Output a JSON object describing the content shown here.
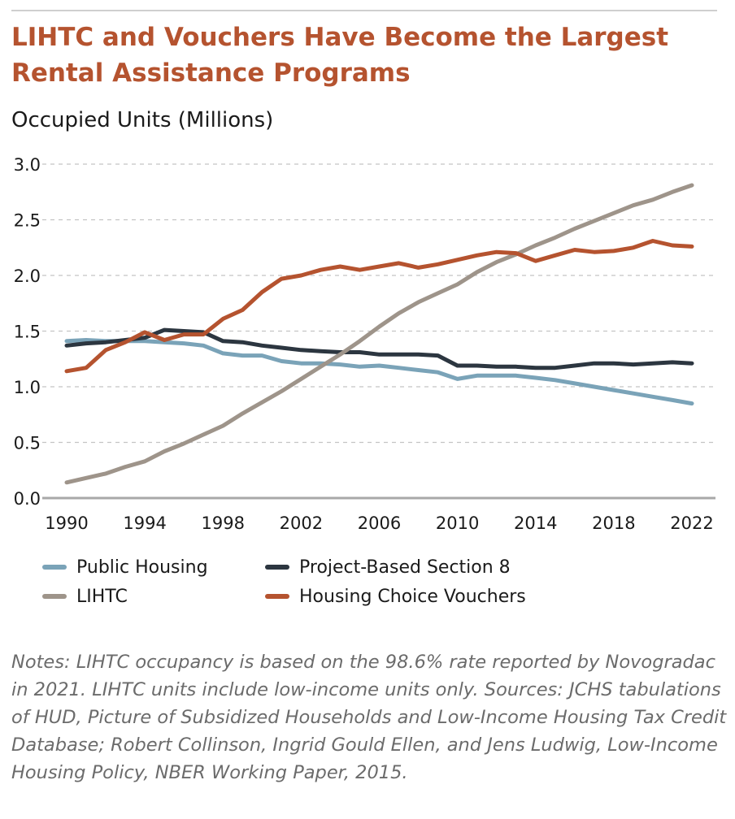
{
  "chart_data": {
    "type": "line",
    "title": "LIHTC and Vouchers Have Become the Largest Rental Assistance Programs",
    "ylabel": "Occupied Units (Millions)",
    "xlabel": "",
    "ylim": [
      0,
      3.0
    ],
    "xlim": [
      1990,
      2022
    ],
    "yticks": [
      "0.0",
      "0.5",
      "1.0",
      "1.5",
      "2.0",
      "2.5",
      "3.0"
    ],
    "xticks": [
      "1990",
      "1994",
      "1998",
      "2002",
      "2006",
      "2010",
      "2014",
      "2018",
      "2022"
    ],
    "grid": "horizontal dashed",
    "legend_position": "bottom",
    "x": [
      1990,
      1991,
      1992,
      1993,
      1994,
      1995,
      1996,
      1997,
      1998,
      1999,
      2000,
      2001,
      2002,
      2003,
      2004,
      2005,
      2006,
      2007,
      2008,
      2009,
      2010,
      2011,
      2012,
      2013,
      2014,
      2015,
      2016,
      2017,
      2018,
      2019,
      2020,
      2021,
      2022
    ],
    "series": [
      {
        "name": "Public Housing",
        "color": "#7aa3b8",
        "values": [
          1.41,
          1.42,
          1.41,
          1.41,
          1.41,
          1.4,
          1.39,
          1.37,
          1.3,
          1.28,
          1.28,
          1.23,
          1.21,
          1.21,
          1.2,
          1.18,
          1.19,
          1.17,
          1.15,
          1.13,
          1.07,
          1.1,
          1.1,
          1.1,
          1.08,
          1.06,
          1.03,
          1.0,
          0.97,
          0.94,
          0.91,
          0.88,
          0.85
        ]
      },
      {
        "name": "Project-Based Section 8",
        "color": "#2c3640",
        "values": [
          1.37,
          1.39,
          1.4,
          1.42,
          1.44,
          1.51,
          1.5,
          1.49,
          1.41,
          1.4,
          1.37,
          1.35,
          1.33,
          1.32,
          1.31,
          1.31,
          1.29,
          1.29,
          1.29,
          1.28,
          1.19,
          1.19,
          1.18,
          1.18,
          1.17,
          1.17,
          1.19,
          1.21,
          1.21,
          1.2,
          1.21,
          1.22,
          1.21
        ]
      },
      {
        "name": "LIHTC",
        "color": "#9e948a",
        "values": [
          0.14,
          0.18,
          0.22,
          0.28,
          0.33,
          0.42,
          0.49,
          0.57,
          0.65,
          0.76,
          0.86,
          0.96,
          1.07,
          1.18,
          1.29,
          1.41,
          1.54,
          1.66,
          1.76,
          1.84,
          1.92,
          2.03,
          2.12,
          2.19,
          2.27,
          2.34,
          2.42,
          2.49,
          2.56,
          2.63,
          2.68,
          2.75,
          2.81
        ]
      },
      {
        "name": "Housing Choice Vouchers",
        "color": "#b5532f",
        "values": [
          1.14,
          1.17,
          1.33,
          1.4,
          1.49,
          1.42,
          1.47,
          1.47,
          1.61,
          1.69,
          1.85,
          1.97,
          2.0,
          2.05,
          2.08,
          2.05,
          2.08,
          2.11,
          2.07,
          2.1,
          2.14,
          2.18,
          2.21,
          2.2,
          2.13,
          2.18,
          2.23,
          2.21,
          2.22,
          2.25,
          2.31,
          2.27,
          2.26
        ]
      }
    ],
    "legend_order": [
      0,
      1,
      2,
      3
    ]
  },
  "notes": "Notes: LIHTC occupancy is based on the 98.6% rate reported by Novogradac in 2021. LIHTC units include low-income units only. Sources: JCHS tabulations of HUD, Picture of Subsidized Households and Low-Income Housing Tax Credit Database; Robert Collinson, Ingrid Gould Ellen, and Jens Ludwig, Low-Income Housing Policy, NBER Working Paper, 2015."
}
